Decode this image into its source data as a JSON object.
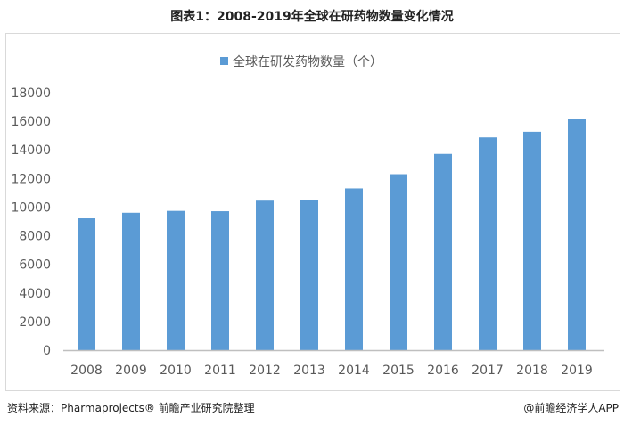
{
  "title": "图表1：2008-2019年全球在研药物数量变化情况",
  "source": "资料来源：Pharmaprojects® 前瞻产业研究院整理",
  "brand": "@前瞻经济学人APP",
  "watermark": "前瞻产业研究院",
  "chart_data": {
    "type": "bar",
    "title": "图表1：2008-2019年全球在研药物数量变化情况",
    "categories": [
      "2008",
      "2009",
      "2010",
      "2011",
      "2012",
      "2013",
      "2014",
      "2015",
      "2016",
      "2017",
      "2018",
      "2019"
    ],
    "series": [
      {
        "name": "全球在研发药物数量（个）",
        "values": [
          9217,
          9605,
          9737,
          9713,
          10452,
          10479,
          11307,
          12300,
          13718,
          14872,
          15267,
          16181
        ],
        "color": "#5b9bd5"
      }
    ],
    "ylim": [
      0,
      18000
    ],
    "yticks": [
      0,
      2000,
      4000,
      6000,
      8000,
      10000,
      12000,
      14000,
      16000,
      18000
    ],
    "grid": false,
    "legend": "top"
  }
}
